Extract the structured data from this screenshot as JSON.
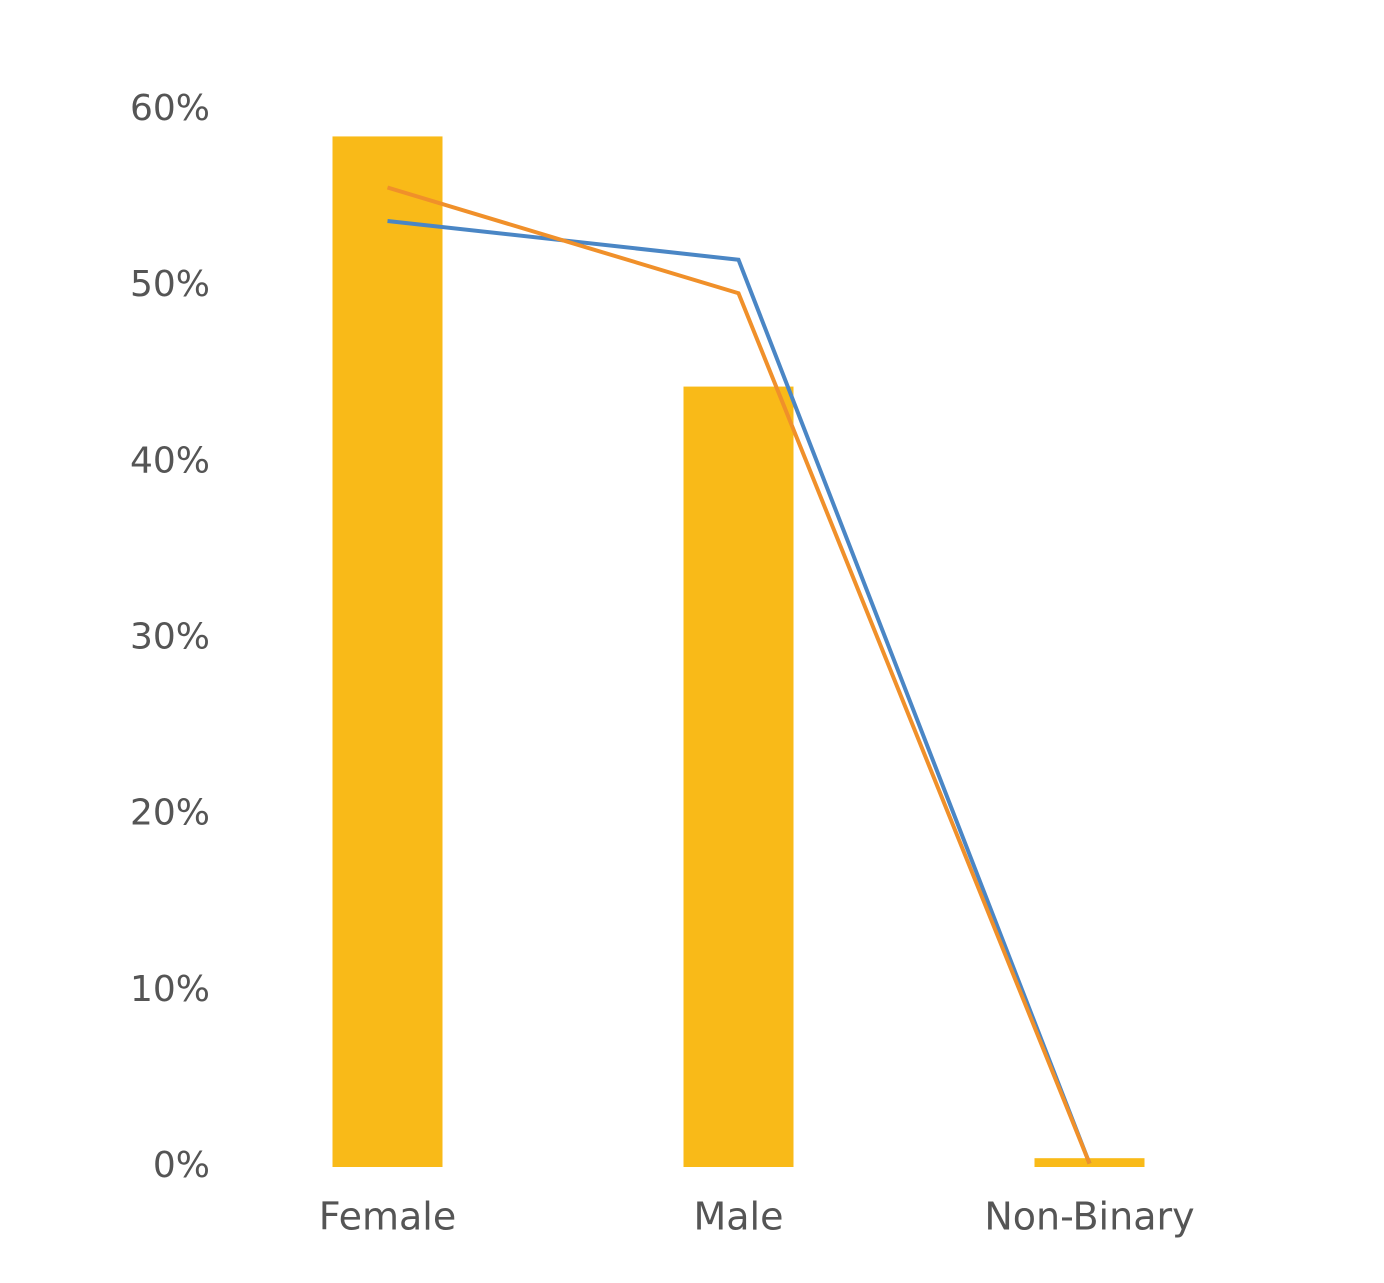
{
  "chart_data": {
    "type": "combo",
    "categories": [
      "Female",
      "Male",
      "Non-Binary"
    ],
    "series": [
      {
        "type": "bar",
        "color": "#f9ba18",
        "values": [
          58.5,
          44.3,
          0.5
        ]
      },
      {
        "type": "line",
        "color": "#4a86c5",
        "values": [
          53.7,
          51.5,
          0.2
        ]
      },
      {
        "type": "line",
        "color": "#f0902a",
        "values": [
          55.6,
          49.6,
          0.2
        ]
      }
    ],
    "ylim": [
      0,
      60
    ],
    "yticks": [
      {
        "value": 0,
        "label": "0%"
      },
      {
        "value": 10,
        "label": "10%"
      },
      {
        "value": 20,
        "label": "20%"
      },
      {
        "value": 30,
        "label": "30%"
      },
      {
        "value": 40,
        "label": "40%"
      },
      {
        "value": 50,
        "label": "50%"
      },
      {
        "value": 60,
        "label": "60%"
      }
    ],
    "grid": false
  }
}
